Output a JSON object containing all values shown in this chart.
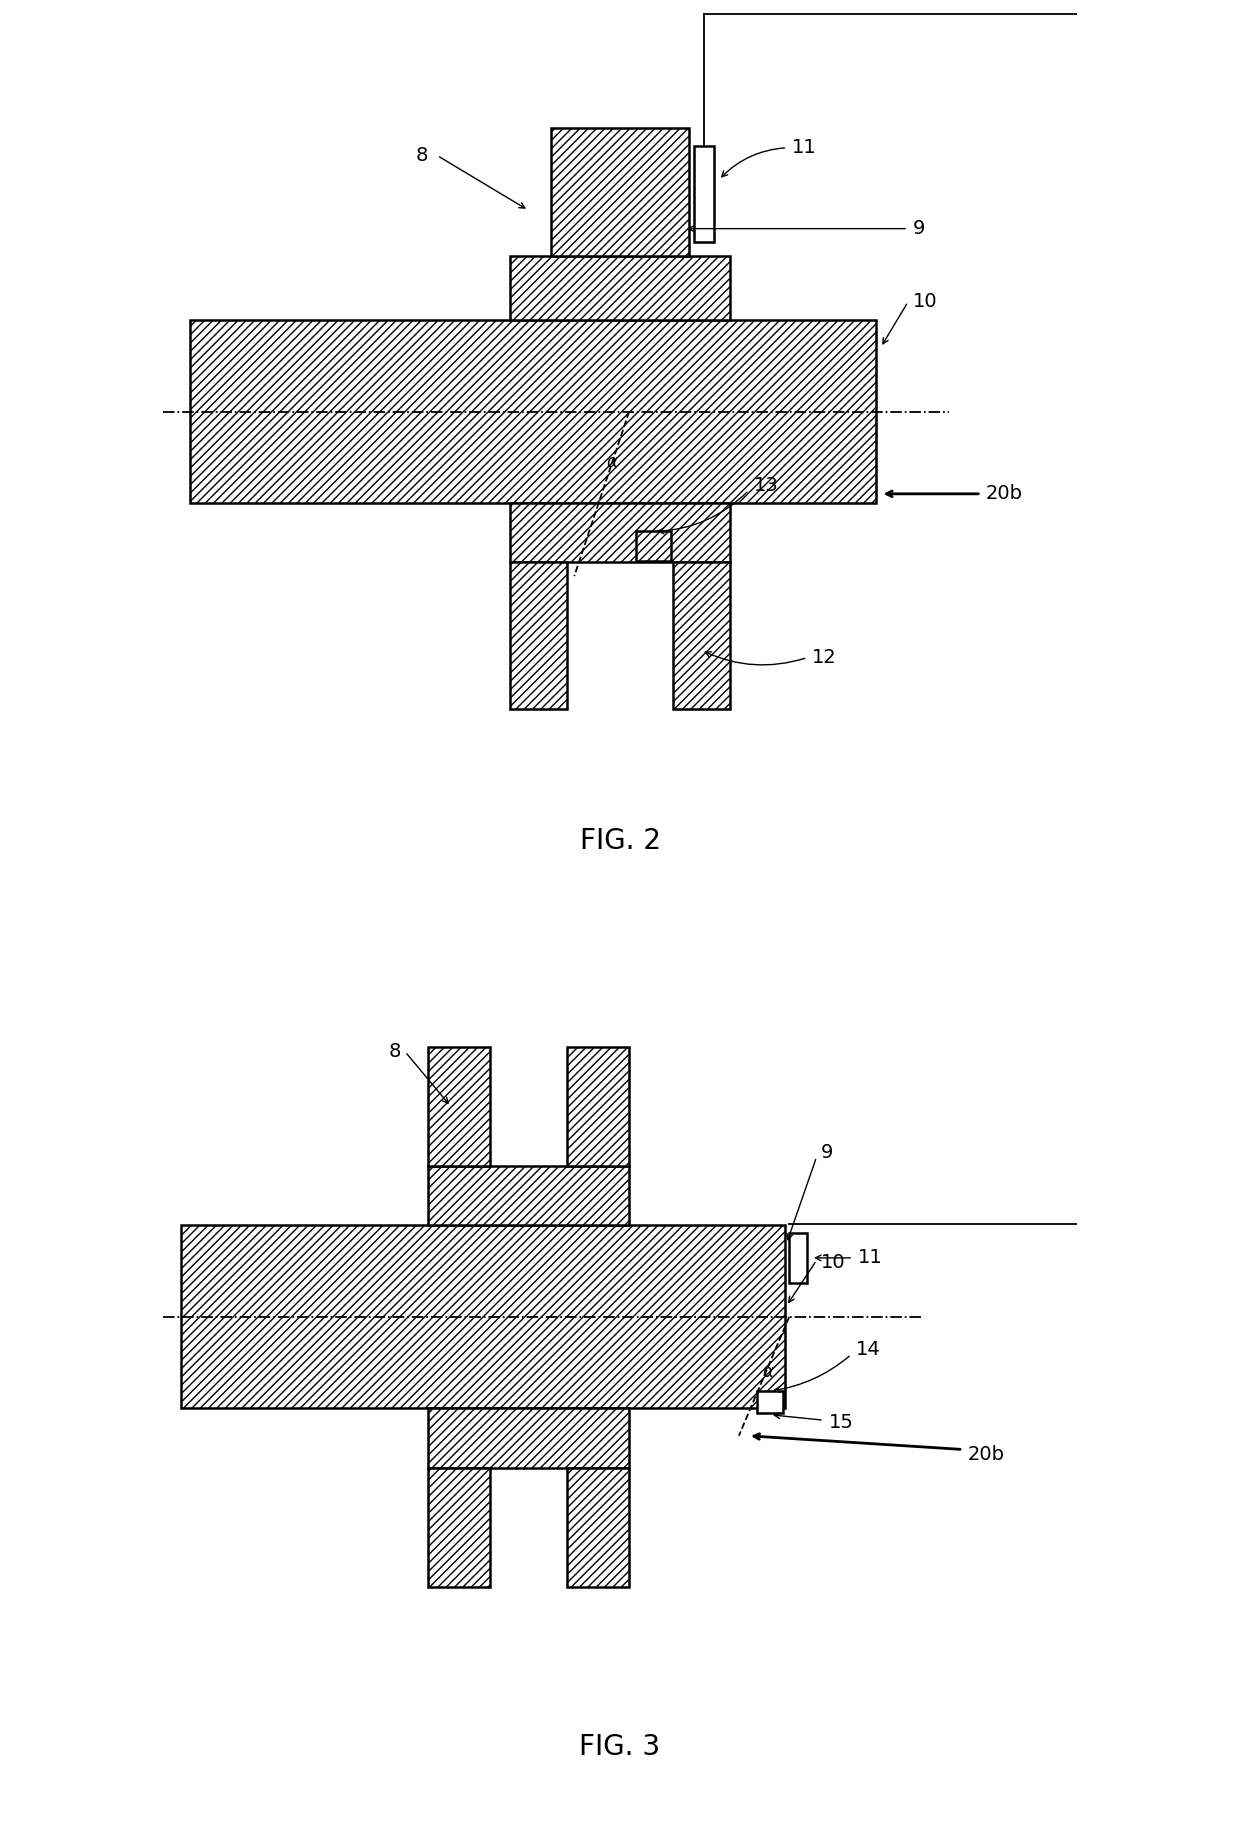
{
  "fig_width": 12.4,
  "fig_height": 18.29,
  "bg_color": "#ffffff",
  "line_color": "#000000",
  "fig2_label": "FIG. 2",
  "fig3_label": "FIG. 3",
  "font_size": 14
}
